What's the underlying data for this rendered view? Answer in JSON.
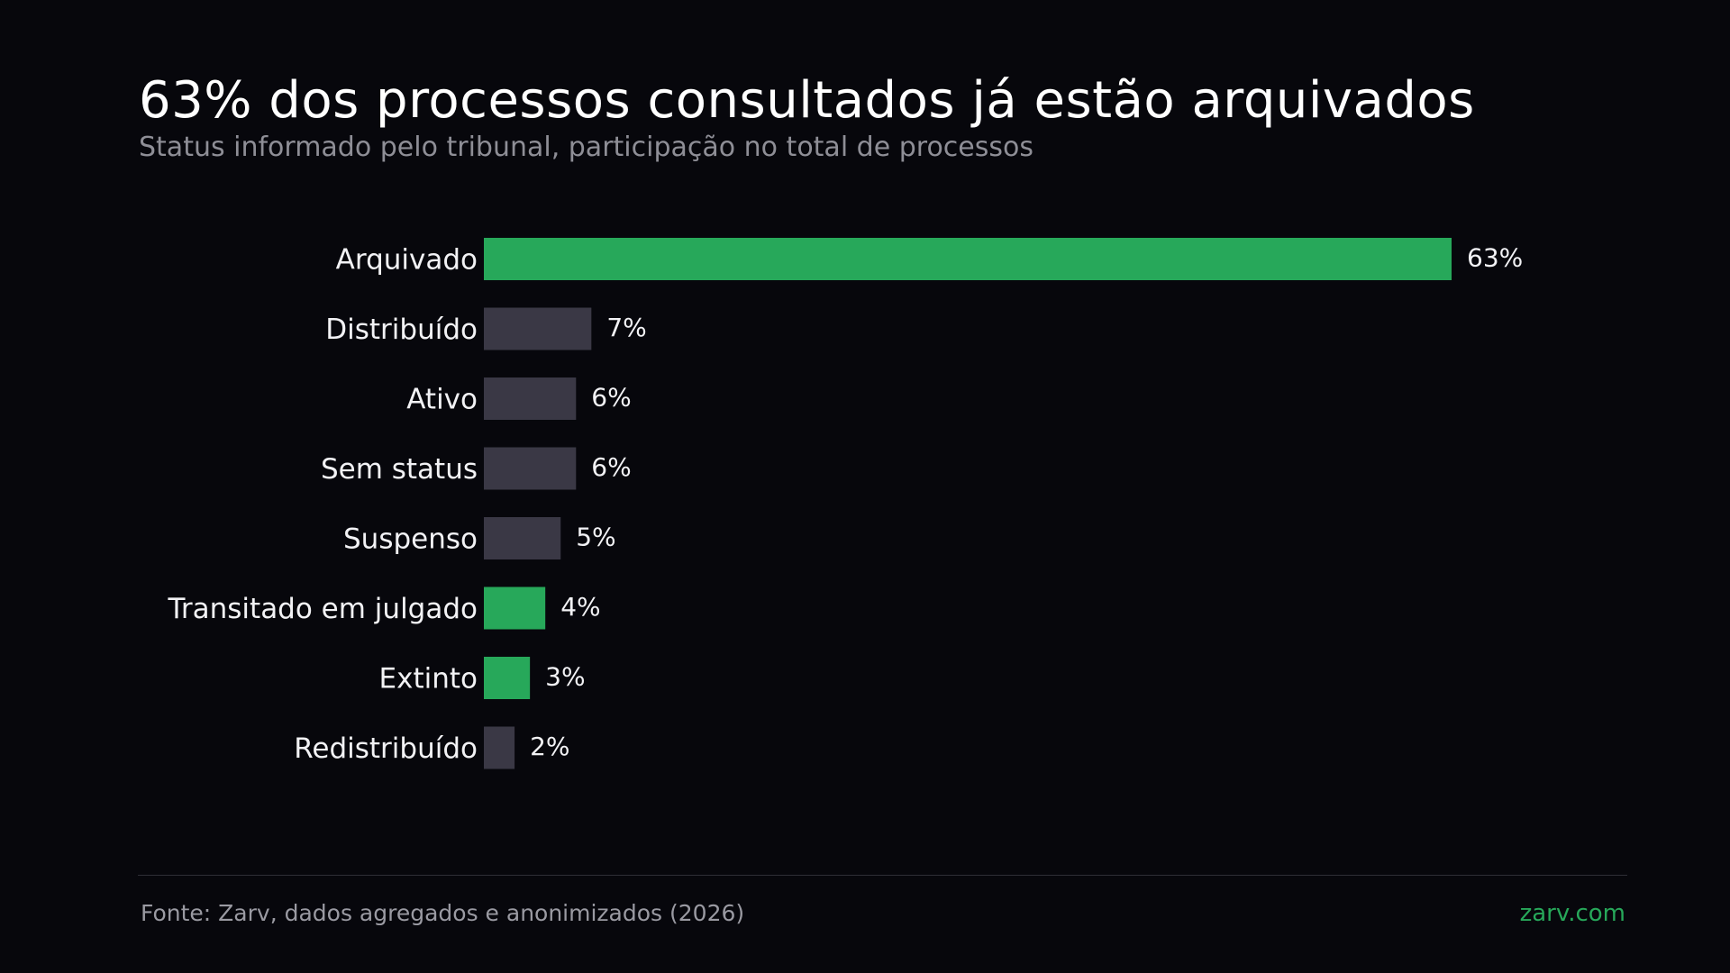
{
  "header": {
    "title": "63% dos processos consultados já estão arquivados",
    "subtitle": "Status informado pelo tribunal, participação no total de processos"
  },
  "chart_data": {
    "type": "bar",
    "orientation": "horizontal",
    "title": "63% dos processos consultados já estão arquivados",
    "subtitle": "Status informado pelo tribunal, participação no total de processos",
    "unit": "%",
    "categories": [
      "Arquivado",
      "Distribuído",
      "Ativo",
      "Sem status",
      "Suspenso",
      "Transitado em julgado",
      "Extinto",
      "Redistribuído"
    ],
    "values": [
      63,
      7,
      6,
      6,
      5,
      4,
      3,
      2
    ],
    "value_labels": [
      "63%",
      "7%",
      "6%",
      "6%",
      "5%",
      "4%",
      "3%",
      "2%"
    ],
    "highlighted": [
      true,
      false,
      false,
      false,
      false,
      true,
      true,
      false
    ],
    "colors": {
      "highlight": "#27a85a",
      "default": "#3a3845"
    },
    "xlim": [
      0,
      63
    ],
    "grid": false,
    "legend": "none"
  },
  "footer": {
    "source": "Fonte: Zarv, dados agregados e anonimizados (2026)",
    "brand": "zarv.com"
  }
}
